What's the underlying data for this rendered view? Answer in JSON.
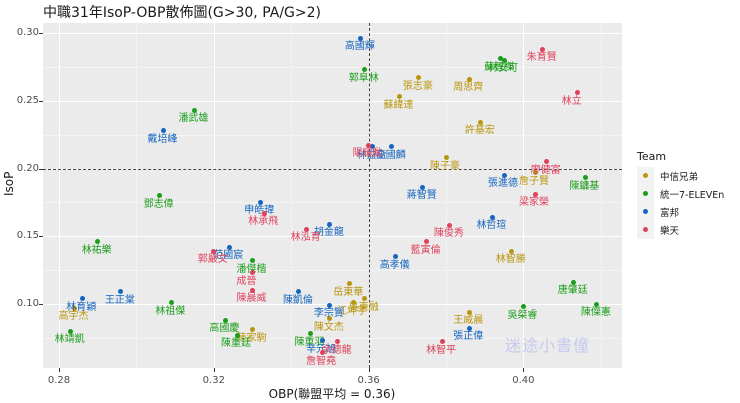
{
  "title": "中職31年IsoP-OBP散佈圖(G>30, PA/G>2)",
  "xlabel": "OBP(聯盟平均 = 0.36)",
  "ylabel": "IsoP",
  "watermark": "迷途小書僮",
  "legend": {
    "title": "Team",
    "items": [
      {
        "label": "中信兄弟",
        "color": "#B8960C"
      },
      {
        "label": "統一7-ELEVEn",
        "color": "#1A9E1A"
      },
      {
        "label": "富邦",
        "color": "#1565C0"
      },
      {
        "label": "樂天",
        "color": "#E0405A"
      }
    ]
  },
  "x_ticks": [
    "0.28",
    "0.32",
    "0.36",
    "0.40"
  ],
  "y_ticks": [
    "0.30",
    "0.25",
    "0.20",
    "0.15",
    "0.10"
  ],
  "chart_data": {
    "type": "scatter",
    "title": "中職31年IsoP-OBP散佈圖(G>30, PA/G>2)",
    "xlabel": "OBP(聯盟平均 = 0.36)",
    "ylabel": "IsoP",
    "xlim": [
      0.276,
      0.425
    ],
    "ylim": [
      0.058,
      0.307
    ],
    "x_ticks": [
      0.28,
      0.32,
      0.36,
      0.4
    ],
    "y_ticks": [
      0.1,
      0.15,
      0.2,
      0.25,
      0.3
    ],
    "reference_lines": {
      "vertical_x": 0.36,
      "horizontal_y": 0.2
    },
    "grid": true,
    "legend_position": "right",
    "legend_title": "Team",
    "series": [
      {
        "name": "中信兄弟",
        "color": "#B8960C",
        "points": [
          {
            "label": "張志豪",
            "x": 0.373,
            "y": 0.267
          },
          {
            "label": "蘇緯達",
            "x": 0.368,
            "y": 0.253
          },
          {
            "label": "周思齊",
            "x": 0.386,
            "y": 0.266
          },
          {
            "label": "許基宏",
            "x": 0.389,
            "y": 0.234
          },
          {
            "label": "陳子豪",
            "x": 0.38,
            "y": 0.208
          },
          {
            "label": "詹子賢",
            "x": 0.403,
            "y": 0.197
          },
          {
            "label": "林智勝",
            "x": 0.397,
            "y": 0.139
          },
          {
            "label": "岳東華",
            "x": 0.355,
            "y": 0.115
          },
          {
            "label": "吳東融",
            "x": 0.359,
            "y": 0.104
          },
          {
            "label": "江坤宇",
            "x": 0.356,
            "y": 0.101
          },
          {
            "label": "高宇杰",
            "x": 0.284,
            "y": 0.097
          },
          {
            "label": "王威晨",
            "x": 0.386,
            "y": 0.094
          },
          {
            "label": "陳文杰",
            "x": 0.35,
            "y": 0.089
          },
          {
            "label": "陳家駒",
            "x": 0.33,
            "y": 0.081
          }
        ]
      },
      {
        "name": "統一7-ELEVEn",
        "color": "#1A9E1A",
        "points": [
          {
            "label": "郭阜林",
            "x": 0.359,
            "y": 0.273
          },
          {
            "label": "潘武雄",
            "x": 0.315,
            "y": 0.243
          },
          {
            "label": "蘇智傑",
            "x": 0.394,
            "y": 0.281
          },
          {
            "label": "林安可",
            "x": 0.395,
            "y": 0.28
          },
          {
            "label": "陳鏞基",
            "x": 0.416,
            "y": 0.193
          },
          {
            "label": "鄧志偉",
            "x": 0.306,
            "y": 0.18
          },
          {
            "label": "林祐樂",
            "x": 0.29,
            "y": 0.146
          },
          {
            "label": "潘傑楷",
            "x": 0.33,
            "y": 0.132
          },
          {
            "label": "林祖傑",
            "x": 0.309,
            "y": 0.101
          },
          {
            "label": "唐肇廷",
            "x": 0.413,
            "y": 0.116
          },
          {
            "label": "吳桀睿",
            "x": 0.4,
            "y": 0.098
          },
          {
            "label": "陳傑憲",
            "x": 0.419,
            "y": 0.1
          },
          {
            "label": "高國慶",
            "x": 0.323,
            "y": 0.088
          },
          {
            "label": "林靖凱",
            "x": 0.283,
            "y": 0.08
          },
          {
            "label": "陳重羽",
            "x": 0.345,
            "y": 0.078
          },
          {
            "label": "陳重廷",
            "x": 0.326,
            "y": 0.077
          }
        ]
      },
      {
        "name": "富邦",
        "color": "#1565C0",
        "points": [
          {
            "label": "高國輝",
            "x": 0.358,
            "y": 0.296
          },
          {
            "label": "戴培峰",
            "x": 0.307,
            "y": 0.228
          },
          {
            "label": "林益全",
            "x": 0.361,
            "y": 0.216
          },
          {
            "label": "高國麟",
            "x": 0.366,
            "y": 0.216
          },
          {
            "label": "蔣智賢",
            "x": 0.374,
            "y": 0.186
          },
          {
            "label": "張進德",
            "x": 0.395,
            "y": 0.195
          },
          {
            "label": "申皓瑋",
            "x": 0.332,
            "y": 0.175
          },
          {
            "label": "胡金龍",
            "x": 0.35,
            "y": 0.159
          },
          {
            "label": "范國宸",
            "x": 0.324,
            "y": 0.142
          },
          {
            "label": "林哲瑄",
            "x": 0.392,
            "y": 0.164
          },
          {
            "label": "高孝儀",
            "x": 0.367,
            "y": 0.135
          },
          {
            "label": "陳凱倫",
            "x": 0.342,
            "y": 0.109
          },
          {
            "label": "王正棠",
            "x": 0.296,
            "y": 0.109
          },
          {
            "label": "林育穎",
            "x": 0.286,
            "y": 0.104
          },
          {
            "label": "李宗賢",
            "x": 0.35,
            "y": 0.099
          },
          {
            "label": "張正偉",
            "x": 0.386,
            "y": 0.082
          },
          {
            "label": "辛元旭",
            "x": 0.348,
            "y": 0.073
          }
        ]
      },
      {
        "name": "樂天",
        "color": "#E0405A",
        "points": [
          {
            "label": "陽耀勳",
            "x": 0.36,
            "y": 0.217
          },
          {
            "label": "朱育賢",
            "x": 0.405,
            "y": 0.288
          },
          {
            "label": "林立",
            "x": 0.414,
            "y": 0.256
          },
          {
            "label": "廖健富",
            "x": 0.406,
            "y": 0.205
          },
          {
            "label": "梁家榮",
            "x": 0.403,
            "y": 0.181
          },
          {
            "label": "林承飛",
            "x": 0.333,
            "y": 0.167
          },
          {
            "label": "林泓育",
            "x": 0.344,
            "y": 0.155
          },
          {
            "label": "郭嚴文",
            "x": 0.32,
            "y": 0.139
          },
          {
            "label": "陳俊秀",
            "x": 0.381,
            "y": 0.158
          },
          {
            "label": "藍寅倫",
            "x": 0.375,
            "y": 0.146
          },
          {
            "label": "成晉",
            "x": 0.33,
            "y": 0.123
          },
          {
            "label": "陳晨威",
            "x": 0.33,
            "y": 0.11
          },
          {
            "label": "余德龍",
            "x": 0.352,
            "y": 0.072
          },
          {
            "label": "林智平",
            "x": 0.379,
            "y": 0.072
          },
          {
            "label": "詹智堯",
            "x": 0.348,
            "y": 0.064
          }
        ]
      }
    ]
  }
}
